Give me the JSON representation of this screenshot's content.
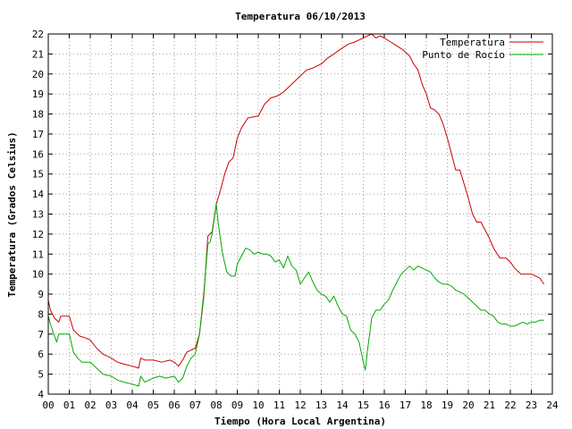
{
  "chart_data": {
    "type": "line",
    "title": "Temperatura 06/10/2013",
    "xlabel": "Tiempo (Hora Local Argentina)",
    "ylabel": "Temperatura (Grados Celsius)",
    "xlim": [
      0,
      24
    ],
    "ylim": [
      4,
      22
    ],
    "x_ticks": [
      "00",
      "01",
      "02",
      "03",
      "04",
      "05",
      "06",
      "07",
      "08",
      "09",
      "10",
      "11",
      "12",
      "13",
      "14",
      "15",
      "16",
      "17",
      "18",
      "19",
      "20",
      "21",
      "22",
      "23",
      "24"
    ],
    "y_ticks": [
      4,
      5,
      6,
      7,
      8,
      9,
      10,
      11,
      12,
      13,
      14,
      15,
      16,
      17,
      18,
      19,
      20,
      21,
      22
    ],
    "grid": true,
    "legend_position": "top-right",
    "series": [
      {
        "name": "Temperatura",
        "color": "#cc0000",
        "x": [
          0.0,
          0.1,
          0.3,
          0.5,
          0.6,
          1.0,
          1.2,
          1.5,
          1.8,
          2.0,
          2.3,
          2.6,
          3.0,
          3.3,
          3.6,
          4.0,
          4.3,
          4.4,
          4.6,
          5.0,
          5.4,
          5.8,
          6.0,
          6.2,
          6.4,
          6.6,
          6.8,
          7.0,
          7.2,
          7.4,
          7.6,
          7.7,
          7.8,
          8.0,
          8.2,
          8.4,
          8.6,
          8.8,
          9.0,
          9.2,
          9.5,
          10.0,
          10.3,
          10.6,
          10.9,
          11.2,
          11.5,
          11.8,
          12.0,
          12.3,
          12.6,
          13.0,
          13.3,
          13.6,
          14.0,
          14.3,
          14.6,
          14.8,
          15.0,
          15.2,
          15.4,
          15.6,
          15.8,
          16.0,
          16.3,
          16.6,
          16.9,
          17.2,
          17.4,
          17.6,
          17.8,
          18.0,
          18.2,
          18.4,
          18.6,
          18.8,
          19.0,
          19.2,
          19.4,
          19.6,
          19.8,
          20.0,
          20.2,
          20.4,
          20.6,
          20.8,
          21.0,
          21.2,
          21.5,
          21.8,
          22.0,
          22.2,
          22.5,
          22.8,
          23.0,
          23.2,
          23.4,
          23.6
        ],
        "values": [
          8.7,
          8.2,
          7.8,
          7.6,
          7.9,
          7.9,
          7.2,
          6.9,
          6.8,
          6.7,
          6.3,
          6.0,
          5.8,
          5.6,
          5.5,
          5.4,
          5.3,
          5.8,
          5.7,
          5.7,
          5.6,
          5.7,
          5.6,
          5.4,
          5.7,
          6.1,
          6.2,
          6.3,
          7.0,
          8.8,
          11.9,
          12.0,
          12.1,
          13.5,
          14.2,
          15.0,
          15.6,
          15.8,
          16.8,
          17.3,
          17.8,
          17.9,
          18.5,
          18.8,
          18.9,
          19.1,
          19.4,
          19.7,
          19.9,
          20.2,
          20.3,
          20.5,
          20.8,
          21.0,
          21.3,
          21.5,
          21.6,
          21.7,
          21.8,
          21.9,
          22.0,
          21.8,
          21.9,
          21.8,
          21.6,
          21.4,
          21.2,
          20.9,
          20.5,
          20.2,
          19.5,
          19.0,
          18.3,
          18.2,
          18.0,
          17.5,
          16.8,
          16.0,
          15.2,
          15.2,
          14.5,
          13.8,
          13.0,
          12.6,
          12.6,
          12.2,
          11.8,
          11.3,
          10.8,
          10.8,
          10.6,
          10.3,
          10.0,
          10.0,
          10.0,
          9.9,
          9.8,
          9.5
        ]
      },
      {
        "name": "Punto de Rocío",
        "color": "#00aa00",
        "x": [
          0.0,
          0.1,
          0.2,
          0.3,
          0.4,
          0.5,
          0.7,
          1.0,
          1.2,
          1.4,
          1.6,
          2.0,
          2.3,
          2.6,
          3.0,
          3.3,
          3.6,
          4.0,
          4.3,
          4.4,
          4.6,
          5.0,
          5.3,
          5.6,
          6.0,
          6.2,
          6.4,
          6.6,
          6.8,
          7.0,
          7.2,
          7.4,
          7.6,
          7.7,
          7.8,
          8.0,
          8.1,
          8.3,
          8.5,
          8.7,
          8.9,
          9.0,
          9.2,
          9.4,
          9.6,
          9.8,
          10.0,
          10.2,
          10.4,
          10.6,
          10.8,
          11.0,
          11.2,
          11.4,
          11.6,
          11.8,
          12.0,
          12.2,
          12.4,
          12.6,
          12.8,
          13.0,
          13.2,
          13.4,
          13.6,
          13.8,
          14.0,
          14.2,
          14.4,
          14.6,
          14.8,
          15.0,
          15.1,
          15.2,
          15.3,
          15.4,
          15.6,
          15.8,
          16.0,
          16.2,
          16.4,
          16.6,
          16.8,
          17.0,
          17.2,
          17.4,
          17.6,
          17.8,
          18.0,
          18.2,
          18.4,
          18.6,
          18.8,
          19.0,
          19.2,
          19.4,
          19.6,
          19.8,
          20.0,
          20.2,
          20.4,
          20.6,
          20.8,
          21.0,
          21.2,
          21.4,
          21.6,
          21.8,
          22.0,
          22.2,
          22.4,
          22.6,
          22.8,
          23.0,
          23.2,
          23.4,
          23.6
        ],
        "values": [
          7.9,
          7.5,
          7.2,
          6.9,
          6.6,
          7.0,
          7.0,
          7.0,
          6.1,
          5.8,
          5.6,
          5.6,
          5.3,
          5.0,
          4.9,
          4.7,
          4.6,
          4.5,
          4.4,
          4.9,
          4.6,
          4.8,
          4.9,
          4.8,
          4.9,
          4.6,
          4.8,
          5.4,
          5.8,
          6.0,
          7.0,
          9.0,
          11.5,
          11.6,
          12.0,
          13.5,
          12.5,
          11.0,
          10.1,
          9.9,
          9.9,
          10.5,
          10.9,
          11.3,
          11.2,
          11.0,
          11.1,
          11.0,
          11.0,
          10.9,
          10.6,
          10.7,
          10.3,
          10.9,
          10.4,
          10.2,
          9.5,
          9.8,
          10.1,
          9.6,
          9.2,
          9.0,
          8.9,
          8.6,
          8.9,
          8.4,
          8.0,
          7.9,
          7.2,
          7.0,
          6.6,
          5.6,
          5.2,
          6.2,
          7.0,
          7.8,
          8.2,
          8.2,
          8.5,
          8.7,
          9.2,
          9.6,
          10.0,
          10.2,
          10.4,
          10.2,
          10.4,
          10.3,
          10.2,
          10.1,
          9.8,
          9.6,
          9.5,
          9.5,
          9.4,
          9.2,
          9.1,
          9.0,
          8.8,
          8.6,
          8.4,
          8.2,
          8.2,
          8.0,
          7.9,
          7.6,
          7.5,
          7.5,
          7.4,
          7.4,
          7.5,
          7.6,
          7.5,
          7.6,
          7.6,
          7.7,
          7.7
        ]
      }
    ]
  }
}
